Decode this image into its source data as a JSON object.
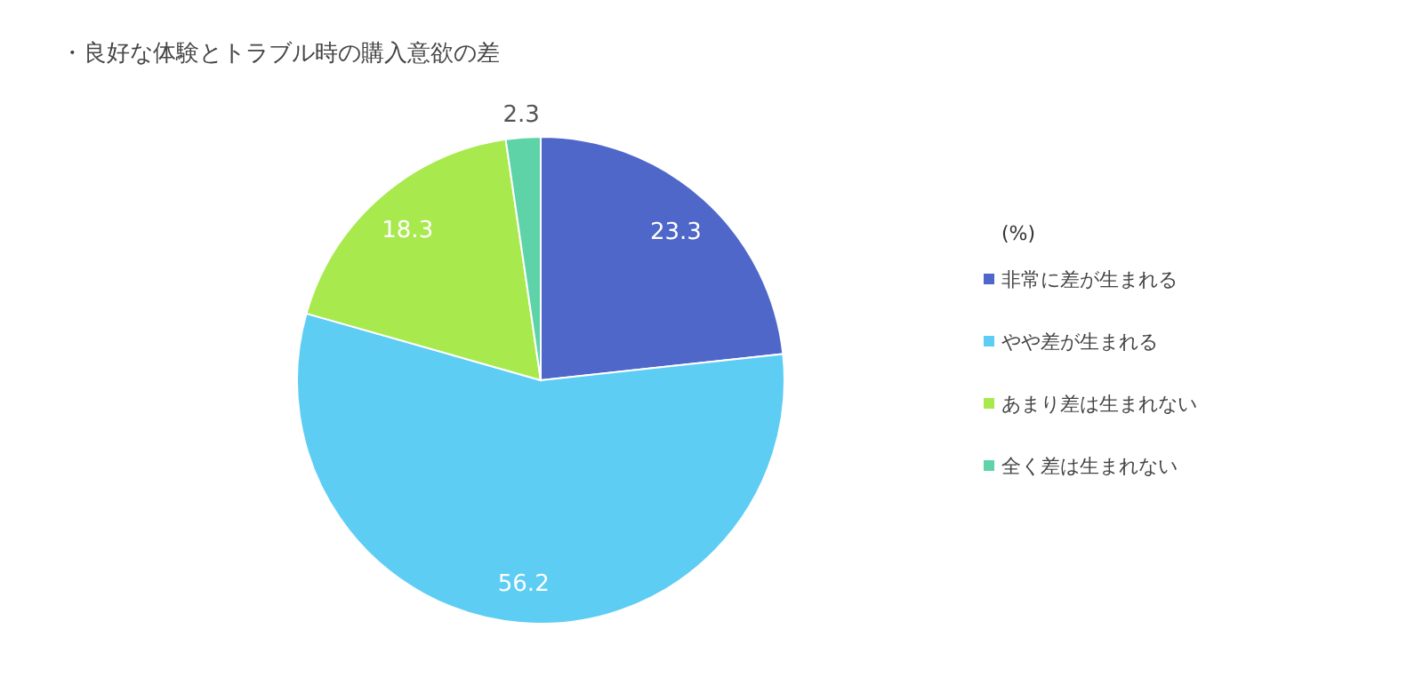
{
  "chart_data": {
    "type": "pie",
    "title": "・良好な体験とトラブル時の購入意欲の差",
    "legend_title": "(%)",
    "categories": [
      "非常に差が生まれる",
      "やや差が生まれる",
      "あまり差は生まれない",
      "全く差は生まれない"
    ],
    "values": [
      23.3,
      56.2,
      18.3,
      2.3
    ],
    "colors": [
      "#4f67c9",
      "#5ecdf4",
      "#a8e94e",
      "#5dd3a7"
    ],
    "data_labels": true,
    "legend": "right"
  }
}
